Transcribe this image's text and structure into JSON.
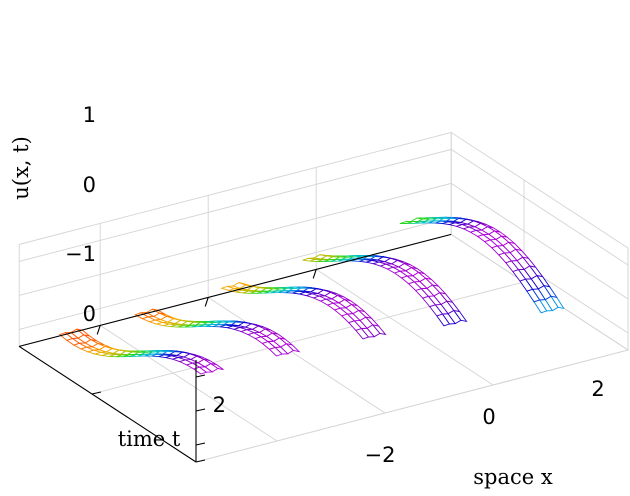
{
  "chart_data": {
    "type": "surface-wireframe-3d",
    "xlabel": "space x",
    "ylabel": "time t",
    "zlabel": "u(x, t)",
    "x_ticks": [
      "−2",
      "0",
      "2"
    ],
    "y_ticks": [
      "0",
      "2"
    ],
    "z_ticks": [
      "1",
      "0",
      "−1"
    ],
    "xlim": [
      -3.5,
      4.5
    ],
    "ylim": [
      0,
      3.4
    ],
    "zlim": [
      -1.5,
      1.5
    ],
    "grid": true,
    "colormap": [
      "#ff0000",
      "#ffa500",
      "#b0c000",
      "#28d818",
      "#00c8b0",
      "#00a8e8",
      "#0000d0",
      "#8000c8",
      "#e000e0"
    ],
    "ribbons": [
      {
        "x0": -3.2,
        "t_range": [
          0,
          3.1
        ]
      },
      {
        "x0": -1.8,
        "t_range": [
          0,
          3.1
        ]
      },
      {
        "x0": -0.2,
        "t_range": [
          0,
          3.1
        ]
      },
      {
        "x0": 1.3,
        "t_range": [
          0,
          3.1
        ]
      },
      {
        "x0": 3.1,
        "t_range": [
          0,
          3.1
        ]
      }
    ]
  }
}
